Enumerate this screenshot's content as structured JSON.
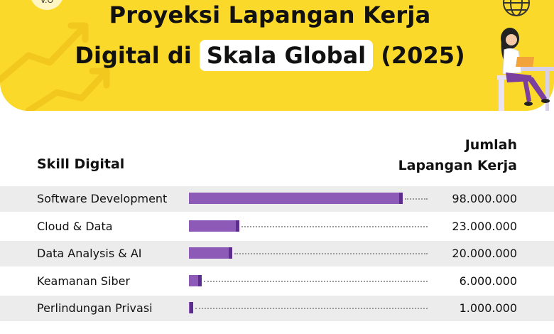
{
  "header": {
    "title_line1": "Proyeksi Lapangan Kerja",
    "title_line2_prefix": "Digital di",
    "title_line2_highlight": "Skala Global",
    "title_line2_suffix": "(2025)",
    "logo_text": "V.O"
  },
  "colors": {
    "banner": "#fbd92a",
    "bar": "#8d5bb7",
    "bar_end": "#5c2d8e",
    "row_shade": "#ececec"
  },
  "icons": [
    "globe-icon",
    "person-laptop-illustration",
    "arrow-up-icon"
  ],
  "table_headers": {
    "left": "Skill Digital",
    "right_line1": "Jumlah",
    "right_line2": "Lapangan Kerja"
  },
  "chart_data": {
    "type": "bar",
    "orientation": "horizontal",
    "categories": [
      "Software Development",
      "Cloud & Data",
      "Data Analysis & AI",
      "Keamanan Siber",
      "Perlindungan Privasi"
    ],
    "values": [
      98000000,
      23000000,
      20000000,
      6000000,
      1000000
    ],
    "value_labels": [
      "98.000.000",
      "23.000.000",
      "20.000.000",
      "6.000.000",
      "1.000.000"
    ],
    "xlim": [
      0,
      100000000
    ],
    "grid": false,
    "legend": "none"
  }
}
